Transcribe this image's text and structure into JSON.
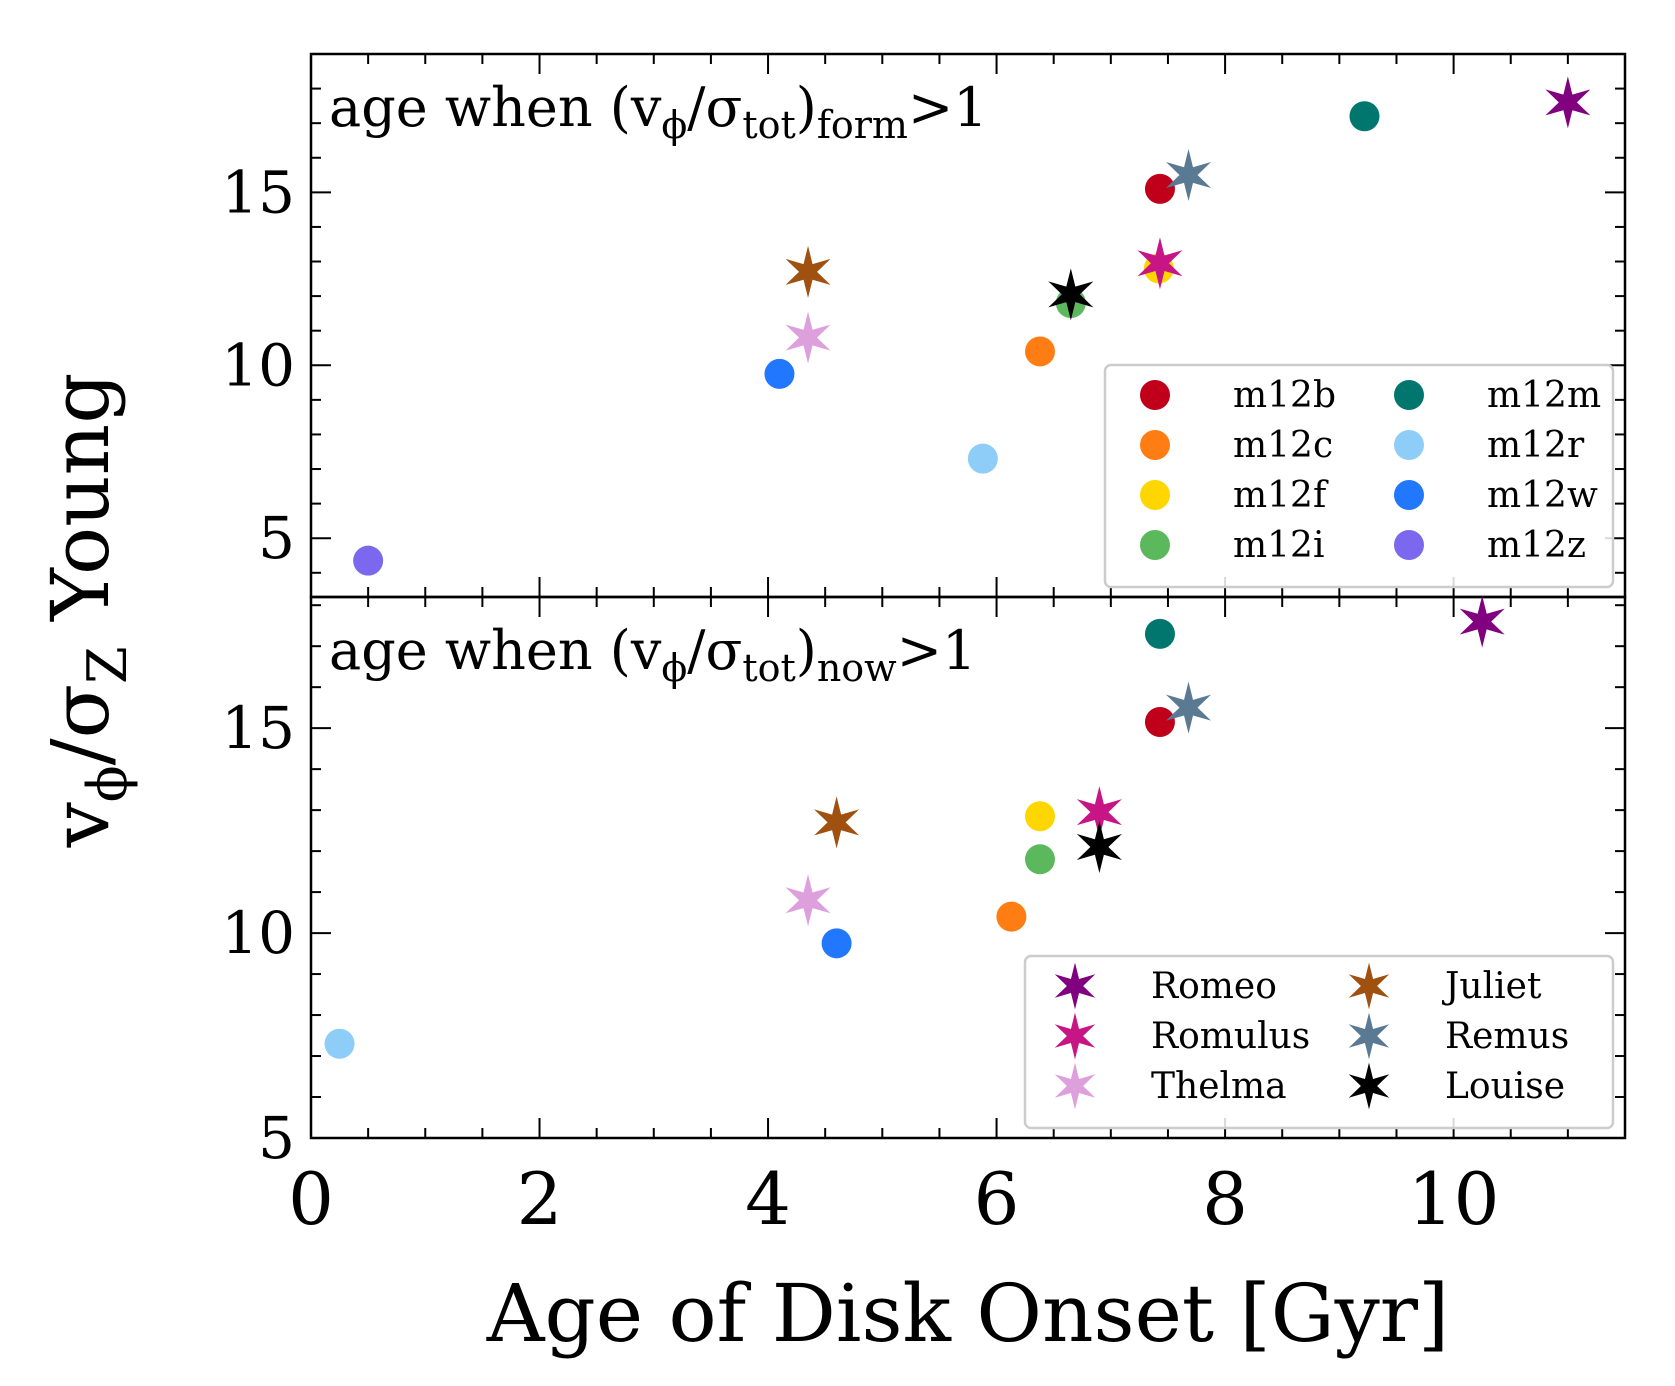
{
  "chart_data": {
    "type": "scatter",
    "xlabel": "Age of Disk Onset [Gyr]",
    "ylabel": "v_ϕ/σ_Z Young",
    "xlim": [
      0,
      11.5
    ],
    "x_ticks": [
      "0",
      "2",
      "4",
      "6",
      "8",
      "10"
    ],
    "shared_x": true,
    "series": [
      {
        "name": "m12b",
        "marker": "circle",
        "color": "#c0001a"
      },
      {
        "name": "m12c",
        "marker": "circle",
        "color": "#ff7d12"
      },
      {
        "name": "m12f",
        "marker": "circle",
        "color": "#ffd600"
      },
      {
        "name": "m12i",
        "marker": "circle",
        "color": "#5cb85c"
      },
      {
        "name": "m12m",
        "marker": "circle",
        "color": "#00766e"
      },
      {
        "name": "m12r",
        "marker": "circle",
        "color": "#8fcdf9"
      },
      {
        "name": "m12w",
        "marker": "circle",
        "color": "#2277ff"
      },
      {
        "name": "m12z",
        "marker": "circle",
        "color": "#7b68ee"
      },
      {
        "name": "Romeo",
        "marker": "star",
        "color": "#800080"
      },
      {
        "name": "Romulus",
        "marker": "star",
        "color": "#c71585"
      },
      {
        "name": "Thelma",
        "marker": "star",
        "color": "#dda0dd"
      },
      {
        "name": "Juliet",
        "marker": "star",
        "color": "#a0500f"
      },
      {
        "name": "Remus",
        "marker": "star",
        "color": "#5a7a94"
      },
      {
        "name": "Louise",
        "marker": "star",
        "color": "#000000"
      }
    ],
    "panels": [
      {
        "title": "age when (vϕ/σtot)form>1",
        "ylim": [
          3.3,
          19
        ],
        "y_ticks": [
          "5",
          "10",
          "15"
        ],
        "legend_position": "lower-right",
        "legend_series": [
          "m12b",
          "m12m",
          "m12c",
          "m12r",
          "m12f",
          "m12w",
          "m12i",
          "m12z"
        ],
        "points": [
          {
            "name": "m12b",
            "x": 7.43,
            "y": 15.1
          },
          {
            "name": "m12c",
            "x": 6.38,
            "y": 10.4
          },
          {
            "name": "m12f",
            "x": 7.42,
            "y": 12.8
          },
          {
            "name": "m12i",
            "x": 6.65,
            "y": 11.8
          },
          {
            "name": "m12m",
            "x": 9.22,
            "y": 17.2
          },
          {
            "name": "m12r",
            "x": 5.88,
            "y": 7.3
          },
          {
            "name": "m12w",
            "x": 4.1,
            "y": 9.75
          },
          {
            "name": "m12z",
            "x": 0.5,
            "y": 4.35
          },
          {
            "name": "Romeo",
            "x": 11.0,
            "y": 17.6
          },
          {
            "name": "Romulus",
            "x": 7.43,
            "y": 12.95
          },
          {
            "name": "Thelma",
            "x": 4.35,
            "y": 10.8
          },
          {
            "name": "Juliet",
            "x": 4.35,
            "y": 12.7
          },
          {
            "name": "Remus",
            "x": 7.68,
            "y": 15.5
          },
          {
            "name": "Louise",
            "x": 6.65,
            "y": 12.05
          }
        ]
      },
      {
        "title": "age when (vϕ/σtot)now>1",
        "ylim": [
          5,
          18.2
        ],
        "y_ticks": [
          "5",
          "10",
          "15"
        ],
        "legend_position": "lower-right",
        "legend_series": [
          "Romeo",
          "Juliet",
          "Romulus",
          "Remus",
          "Thelma",
          "Louise"
        ],
        "points": [
          {
            "name": "m12b",
            "x": 7.43,
            "y": 15.15
          },
          {
            "name": "m12c",
            "x": 6.13,
            "y": 10.4
          },
          {
            "name": "m12f",
            "x": 6.38,
            "y": 12.85
          },
          {
            "name": "m12i",
            "x": 6.38,
            "y": 11.8
          },
          {
            "name": "m12m",
            "x": 7.43,
            "y": 17.3
          },
          {
            "name": "m12r",
            "x": 0.25,
            "y": 7.3
          },
          {
            "name": "m12w",
            "x": 4.6,
            "y": 9.75
          },
          {
            "name": "Romeo",
            "x": 10.25,
            "y": 17.6
          },
          {
            "name": "Romulus",
            "x": 6.9,
            "y": 12.95
          },
          {
            "name": "Thelma",
            "x": 4.35,
            "y": 10.8
          },
          {
            "name": "Juliet",
            "x": 4.6,
            "y": 12.7
          },
          {
            "name": "Remus",
            "x": 7.68,
            "y": 15.5
          },
          {
            "name": "Louise",
            "x": 6.9,
            "y": 12.1
          }
        ]
      }
    ]
  }
}
